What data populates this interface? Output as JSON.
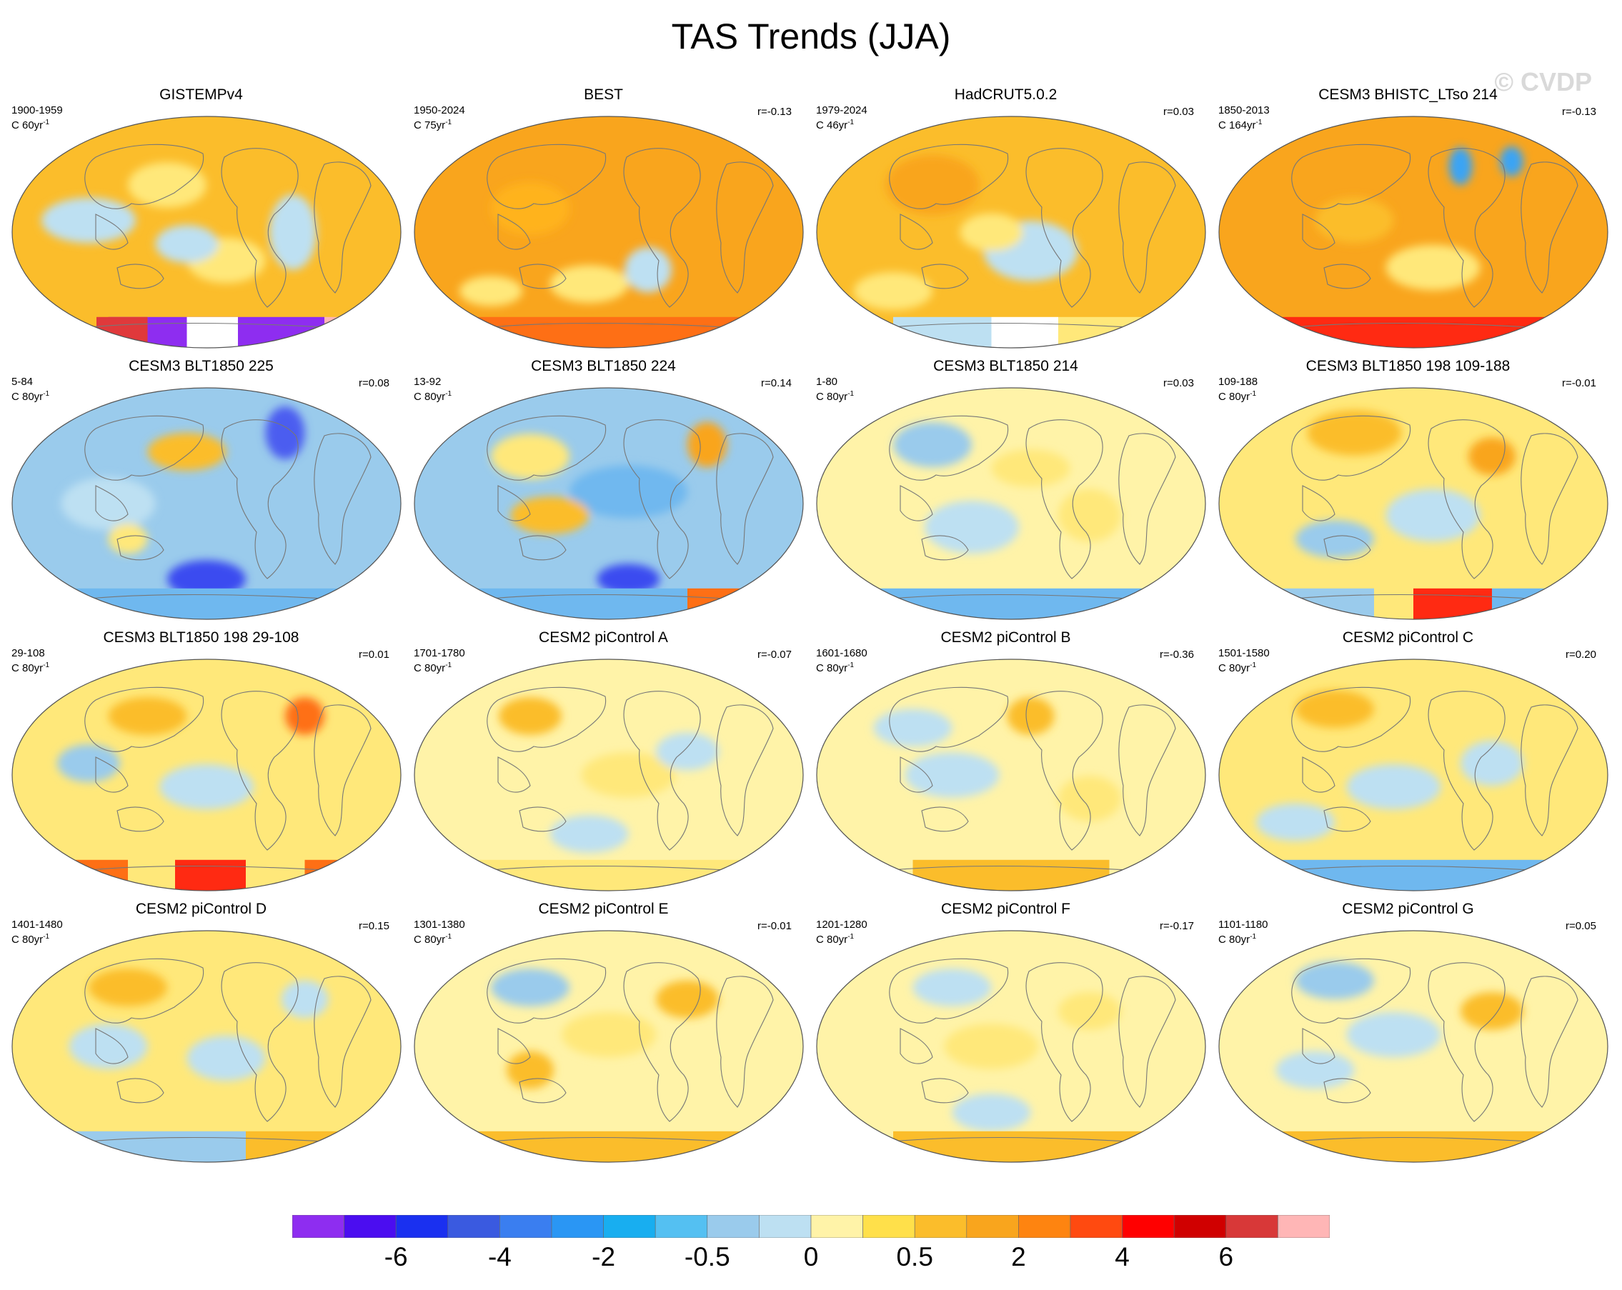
{
  "title": "TAS Trends (JJA)",
  "watermark": "© CVDP",
  "panels": [
    {
      "title": "GISTEMPv4",
      "years": "1900-1959",
      "rate": "C 60yr",
      "rate_exp": "-1",
      "r": "",
      "base": "#fbbd2b",
      "blobs": [
        [
          0.2,
          0.45,
          0.12,
          0.06,
          "#bde0f2"
        ],
        [
          0.72,
          0.5,
          0.06,
          0.1,
          "#bde0f2"
        ],
        [
          0.4,
          0.3,
          0.1,
          0.06,
          "#ffe87a"
        ],
        [
          0.55,
          0.62,
          0.1,
          0.06,
          "#ffe87a"
        ],
        [
          0.45,
          0.55,
          0.08,
          0.05,
          "#bde0f2"
        ]
      ],
      "south": [
        [
          "#8e2df0",
          0.25,
          0.8
        ],
        [
          "#e0393b",
          0.22,
          0.35
        ],
        [
          "#ffffff",
          0.45,
          0.58
        ],
        [
          "#ffb6b6",
          0.8,
          0.88
        ]
      ]
    },
    {
      "title": "BEST",
      "years": "1950-2024",
      "rate": "C 75yr",
      "rate_exp": "-1",
      "r": "r=-0.13",
      "base": "#f9a51d",
      "blobs": [
        [
          0.45,
          0.72,
          0.1,
          0.05,
          "#ffe87a"
        ],
        [
          0.3,
          0.4,
          0.1,
          0.07,
          "#ffb31a"
        ],
        [
          0.6,
          0.66,
          0.06,
          0.06,
          "#bde0f2"
        ],
        [
          0.2,
          0.75,
          0.08,
          0.04,
          "#ffe87a"
        ]
      ],
      "south": [
        [
          "#fe6f15",
          0.15,
          0.9
        ]
      ]
    },
    {
      "title": "HadCRUT5.0.2",
      "years": "1979-2024",
      "rate": "C 46yr",
      "rate_exp": "-1",
      "r": "r=0.03",
      "base": "#fbbd2b",
      "blobs": [
        [
          0.55,
          0.58,
          0.12,
          0.08,
          "#bde0f2"
        ],
        [
          0.3,
          0.3,
          0.12,
          0.08,
          "#f9a51d"
        ],
        [
          0.2,
          0.75,
          0.1,
          0.05,
          "#ffe87a"
        ],
        [
          0.45,
          0.5,
          0.08,
          0.05,
          "#ffe87a"
        ]
      ],
      "south": [
        [
          "#bde0f2",
          0.2,
          0.45
        ],
        [
          "#ffffff",
          0.45,
          0.62
        ],
        [
          "#ffe87a",
          0.62,
          0.85
        ]
      ]
    },
    {
      "title": "CESM3 BHISTC_LTso 214",
      "years": "1850-2013",
      "rate": "C 164yr",
      "rate_exp": "-1",
      "r": "r=-0.13",
      "base": "#f9a51d",
      "blobs": [
        [
          0.55,
          0.65,
          0.12,
          0.06,
          "#ffe87a"
        ],
        [
          0.35,
          0.45,
          0.1,
          0.06,
          "#fbbd2b"
        ],
        [
          0.62,
          0.22,
          0.03,
          0.05,
          "#3aa4f4"
        ],
        [
          0.75,
          0.2,
          0.03,
          0.04,
          "#3aa4f4"
        ]
      ],
      "south": [
        [
          "#ff2a12",
          0.1,
          0.9
        ]
      ]
    },
    {
      "title": "CESM3 BLT1850 225",
      "years": "5-84",
      "rate": "C 80yr",
      "rate_exp": "-1",
      "r": "r=0.08",
      "base": "#9acbec",
      "blobs": [
        [
          0.45,
          0.28,
          0.1,
          0.05,
          "#fbbd2b"
        ],
        [
          0.7,
          0.2,
          0.05,
          0.07,
          "#4b5df0"
        ],
        [
          0.25,
          0.5,
          0.12,
          0.07,
          "#bde0f2"
        ],
        [
          0.5,
          0.82,
          0.1,
          0.05,
          "#3a4cf0"
        ],
        [
          0.3,
          0.65,
          0.05,
          0.04,
          "#ffe87a"
        ]
      ],
      "south": [
        [
          "#6fb8ef",
          0.1,
          0.9
        ]
      ]
    },
    {
      "title": "CESM3 BLT1850 224",
      "years": "13-92",
      "rate": "C 80yr",
      "rate_exp": "-1",
      "r": "r=0.14",
      "base": "#9acbec",
      "blobs": [
        [
          0.55,
          0.45,
          0.15,
          0.07,
          "#6fb8ef"
        ],
        [
          0.35,
          0.55,
          0.1,
          0.05,
          "#fbbd2b"
        ],
        [
          0.3,
          0.3,
          0.1,
          0.06,
          "#ffe87a"
        ],
        [
          0.75,
          0.25,
          0.05,
          0.06,
          "#f9a51d"
        ],
        [
          0.55,
          0.82,
          0.08,
          0.04,
          "#3a4cf0"
        ]
      ],
      "south": [
        [
          "#6fb8ef",
          0.1,
          0.7
        ],
        [
          "#fe6f15",
          0.7,
          0.88
        ]
      ]
    },
    {
      "title": "CESM3 BLT1850 214",
      "years": "1-80",
      "rate": "C 80yr",
      "rate_exp": "-1",
      "r": "r=0.03",
      "base": "#fff3a8",
      "blobs": [
        [
          0.3,
          0.25,
          0.1,
          0.06,
          "#9acbec"
        ],
        [
          0.4,
          0.6,
          0.12,
          0.07,
          "#bde0f2"
        ],
        [
          0.7,
          0.55,
          0.08,
          0.07,
          "#ffe87a"
        ],
        [
          0.55,
          0.35,
          0.1,
          0.05,
          "#ffe87a"
        ]
      ],
      "south": [
        [
          "#6fb8ef",
          0.1,
          0.9
        ]
      ]
    },
    {
      "title": "CESM3 BLT1850 198 109-188",
      "years": "109-188",
      "rate": "C 80yr",
      "rate_exp": "-1",
      "r": "r=-0.01",
      "base": "#ffe87a",
      "blobs": [
        [
          0.35,
          0.2,
          0.12,
          0.06,
          "#fbbd2b"
        ],
        [
          0.55,
          0.55,
          0.12,
          0.07,
          "#bde0f2"
        ],
        [
          0.3,
          0.65,
          0.1,
          0.05,
          "#9acbec"
        ],
        [
          0.7,
          0.3,
          0.06,
          0.05,
          "#f9a51d"
        ]
      ],
      "south": [
        [
          "#9acbec",
          0.1,
          0.4
        ],
        [
          "#ff2a12",
          0.5,
          0.7
        ],
        [
          "#6fb8ef",
          0.7,
          0.9
        ]
      ]
    },
    {
      "title": "CESM3 BLT1850 198 29-108",
      "years": "29-108",
      "rate": "C 80yr",
      "rate_exp": "-1",
      "r": "r=0.01",
      "base": "#ffe87a",
      "blobs": [
        [
          0.35,
          0.25,
          0.1,
          0.05,
          "#fbbd2b"
        ],
        [
          0.5,
          0.55,
          0.12,
          0.06,
          "#bde0f2"
        ],
        [
          0.75,
          0.25,
          0.05,
          0.05,
          "#fe6f15"
        ],
        [
          0.2,
          0.45,
          0.08,
          0.05,
          "#9acbec"
        ]
      ],
      "south": [
        [
          "#fe6f15",
          0.1,
          0.3
        ],
        [
          "#ff2a12",
          0.42,
          0.6
        ],
        [
          "#fe6f15",
          0.75,
          0.9
        ]
      ]
    },
    {
      "title": "CESM2 piControl A",
      "years": "1701-1780",
      "rate": "C 80yr",
      "rate_exp": "-1",
      "r": "r=-0.07",
      "base": "#fff3a8",
      "blobs": [
        [
          0.3,
          0.25,
          0.08,
          0.05,
          "#fbbd2b"
        ],
        [
          0.55,
          0.5,
          0.12,
          0.06,
          "#ffe87a"
        ],
        [
          0.45,
          0.75,
          0.1,
          0.05,
          "#bde0f2"
        ],
        [
          0.7,
          0.4,
          0.08,
          0.05,
          "#bde0f2"
        ]
      ],
      "south": [
        [
          "#ffe87a",
          0.1,
          0.9
        ]
      ]
    },
    {
      "title": "CESM2 piControl B",
      "years": "1601-1680",
      "rate": "C 80yr",
      "rate_exp": "-1",
      "r": "r=-0.36",
      "base": "#fff3a8",
      "blobs": [
        [
          0.55,
          0.25,
          0.06,
          0.05,
          "#fbbd2b"
        ],
        [
          0.35,
          0.5,
          0.12,
          0.06,
          "#bde0f2"
        ],
        [
          0.7,
          0.6,
          0.08,
          0.06,
          "#ffe87a"
        ],
        [
          0.25,
          0.3,
          0.1,
          0.05,
          "#bde0f2"
        ]
      ],
      "south": [
        [
          "#fbbd2b",
          0.25,
          0.75
        ]
      ]
    },
    {
      "title": "CESM2 piControl C",
      "years": "1501-1580",
      "rate": "C 80yr",
      "rate_exp": "-1",
      "r": "r=0.20",
      "base": "#ffe87a",
      "blobs": [
        [
          0.3,
          0.22,
          0.1,
          0.05,
          "#fbbd2b"
        ],
        [
          0.45,
          0.55,
          0.12,
          0.06,
          "#bde0f2"
        ],
        [
          0.7,
          0.45,
          0.08,
          0.06,
          "#bde0f2"
        ],
        [
          0.2,
          0.7,
          0.1,
          0.05,
          "#bde0f2"
        ]
      ],
      "south": [
        [
          "#6fb8ef",
          0.1,
          0.9
        ]
      ]
    },
    {
      "title": "CESM2 piControl D",
      "years": "1401-1480",
      "rate": "C 80yr",
      "rate_exp": "-1",
      "r": "r=0.15",
      "base": "#ffe87a",
      "blobs": [
        [
          0.3,
          0.25,
          0.1,
          0.05,
          "#fbbd2b"
        ],
        [
          0.25,
          0.5,
          0.1,
          0.06,
          "#bde0f2"
        ],
        [
          0.55,
          0.55,
          0.1,
          0.06,
          "#bde0f2"
        ],
        [
          0.75,
          0.3,
          0.06,
          0.05,
          "#bde0f2"
        ]
      ],
      "south": [
        [
          "#9acbec",
          0.1,
          0.6
        ],
        [
          "#fbbd2b",
          0.6,
          0.85
        ]
      ]
    },
    {
      "title": "CESM2 piControl E",
      "years": "1301-1380",
      "rate": "C 80yr",
      "rate_exp": "-1",
      "r": "r=-0.01",
      "base": "#fff3a8",
      "blobs": [
        [
          0.3,
          0.25,
          0.1,
          0.05,
          "#9acbec"
        ],
        [
          0.5,
          0.45,
          0.12,
          0.06,
          "#ffe87a"
        ],
        [
          0.3,
          0.6,
          0.06,
          0.05,
          "#fbbd2b"
        ],
        [
          0.7,
          0.3,
          0.08,
          0.05,
          "#fbbd2b"
        ]
      ],
      "south": [
        [
          "#fbbd2b",
          0.1,
          0.9
        ]
      ]
    },
    {
      "title": "CESM2 piControl F",
      "years": "1201-1280",
      "rate": "C 80yr",
      "rate_exp": "-1",
      "r": "r=-0.17",
      "base": "#fff3a8",
      "blobs": [
        [
          0.35,
          0.25,
          0.1,
          0.05,
          "#bde0f2"
        ],
        [
          0.45,
          0.5,
          0.12,
          0.06,
          "#ffe87a"
        ],
        [
          0.45,
          0.78,
          0.1,
          0.05,
          "#bde0f2"
        ],
        [
          0.7,
          0.35,
          0.08,
          0.05,
          "#ffe87a"
        ]
      ],
      "south": [
        [
          "#fbbd2b",
          0.2,
          0.85
        ]
      ]
    },
    {
      "title": "CESM2 piControl G",
      "years": "1101-1180",
      "rate": "C 80yr",
      "rate_exp": "-1",
      "r": "r=0.05",
      "base": "#fff3a8",
      "blobs": [
        [
          0.3,
          0.22,
          0.1,
          0.05,
          "#9acbec"
        ],
        [
          0.45,
          0.45,
          0.12,
          0.06,
          "#bde0f2"
        ],
        [
          0.7,
          0.35,
          0.08,
          0.05,
          "#fbbd2b"
        ],
        [
          0.25,
          0.6,
          0.1,
          0.05,
          "#bde0f2"
        ]
      ],
      "south": [
        [
          "#fbbd2b",
          0.1,
          0.9
        ]
      ]
    }
  ],
  "colorbar": {
    "colors": [
      "#8e2df0",
      "#4b0df0",
      "#1a30f0",
      "#3a5ae0",
      "#3a7ef0",
      "#2a96f4",
      "#18aef0",
      "#54c0f2",
      "#9acbec",
      "#bde0f2",
      "#fff3a8",
      "#ffe04a",
      "#fbbd2b",
      "#f9a51d",
      "#fe8410",
      "#ff4a10",
      "#ff0000",
      "#d00000",
      "#d83838",
      "#ffb6b6"
    ],
    "labels": [
      {
        "text": "-6",
        "boundary": 2
      },
      {
        "text": "-4",
        "boundary": 4
      },
      {
        "text": "-2",
        "boundary": 6
      },
      {
        "text": "-0.5",
        "boundary": 8
      },
      {
        "text": "0",
        "boundary": 10
      },
      {
        "text": "0.5",
        "boundary": 12
      },
      {
        "text": "2",
        "boundary": 14
      },
      {
        "text": "4",
        "boundary": 16
      },
      {
        "text": "6",
        "boundary": 18
      }
    ]
  }
}
